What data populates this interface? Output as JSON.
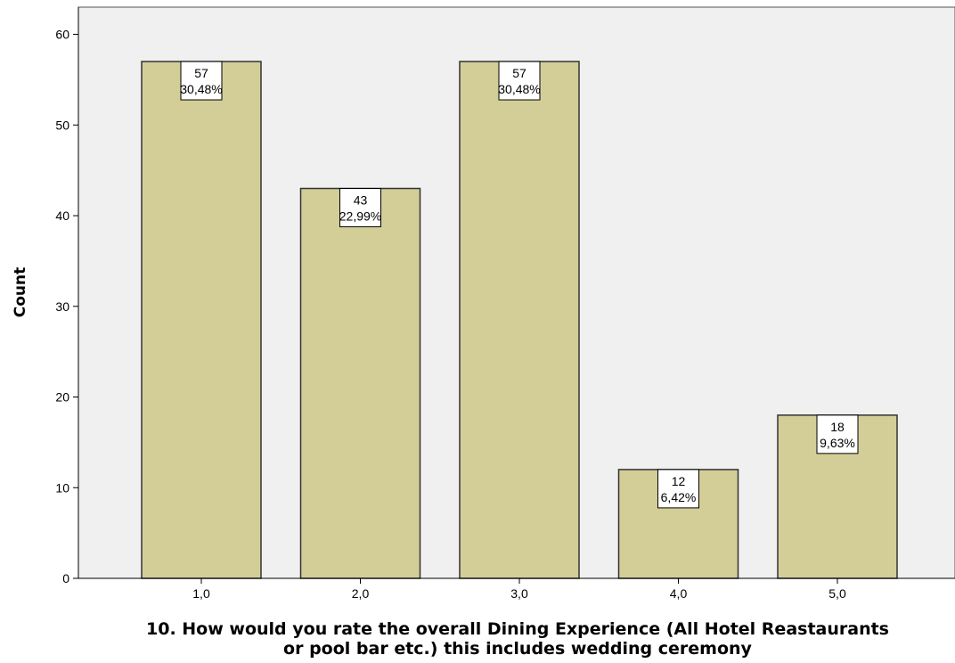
{
  "chart_data": {
    "type": "bar",
    "categories": [
      "1,0",
      "2,0",
      "3,0",
      "4,0",
      "5,0"
    ],
    "values": [
      57,
      43,
      57,
      12,
      18
    ],
    "percent_labels": [
      "30,48%",
      "22,99%",
      "30,48%",
      "6,42%",
      "9,63%"
    ],
    "ylabel": "Count",
    "xlabel_lines": [
      "10. How would you rate the overall Dining Experience (All Hotel Reastaurants",
      "or pool bar etc.) this includes wedding ceremony"
    ],
    "ylim": [
      0,
      63
    ],
    "yticks": [
      0,
      10,
      20,
      30,
      40,
      50,
      60
    ],
    "grid": false,
    "colors": {
      "bar_fill": "#d3ce97",
      "bar_stroke": "#333333",
      "plot_background": "#f0f0f0"
    }
  }
}
